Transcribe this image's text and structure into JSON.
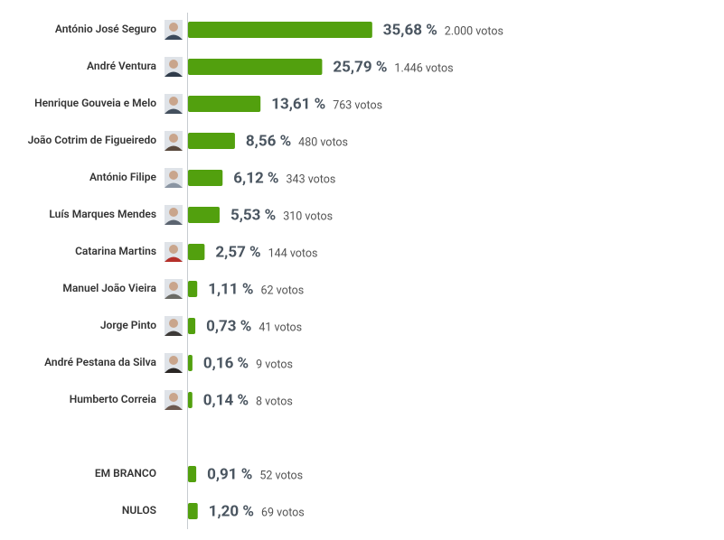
{
  "chart_data": [
    {
      "type": "bar",
      "orientation": "horizontal",
      "color": "#52a00e",
      "photos": true,
      "categories": [
        "António José Seguro",
        "André Ventura",
        "Henrique Gouveia e Melo",
        "João Cotrim de Figueiredo",
        "António Filipe",
        "Luís Marques Mendes",
        "Catarina Martins",
        "Manuel João Vieira",
        "Jorge Pinto",
        "André Pestana da Silva",
        "Humberto Correia"
      ],
      "values": [
        35.68,
        25.79,
        13.61,
        8.56,
        6.12,
        5.53,
        2.57,
        1.11,
        0.73,
        0.16,
        0.14
      ],
      "value_labels": [
        "35,68 %",
        "25,79 %",
        "13,61 %",
        "8,56 %",
        "6,12 %",
        "5,53 %",
        "2,57 %",
        "1,11 %",
        "0,73 %",
        "0,16 %",
        "0,14 %"
      ],
      "vote_labels": [
        "2.000 votos",
        "1.446 votos",
        "763 votos",
        "480 votos",
        "343 votos",
        "310 votos",
        "144 votos",
        "62 votos",
        "41 votos",
        "9 votos",
        "8 votos"
      ]
    },
    {
      "type": "bar",
      "orientation": "horizontal",
      "color": "#52a00e",
      "photos": false,
      "categories": [
        "EM BRANCO",
        "NULOS"
      ],
      "values": [
        0.91,
        1.2
      ],
      "value_labels": [
        "0,91 %",
        "1,20 %"
      ],
      "vote_labels": [
        "52 votos",
        "69 votos"
      ]
    }
  ]
}
